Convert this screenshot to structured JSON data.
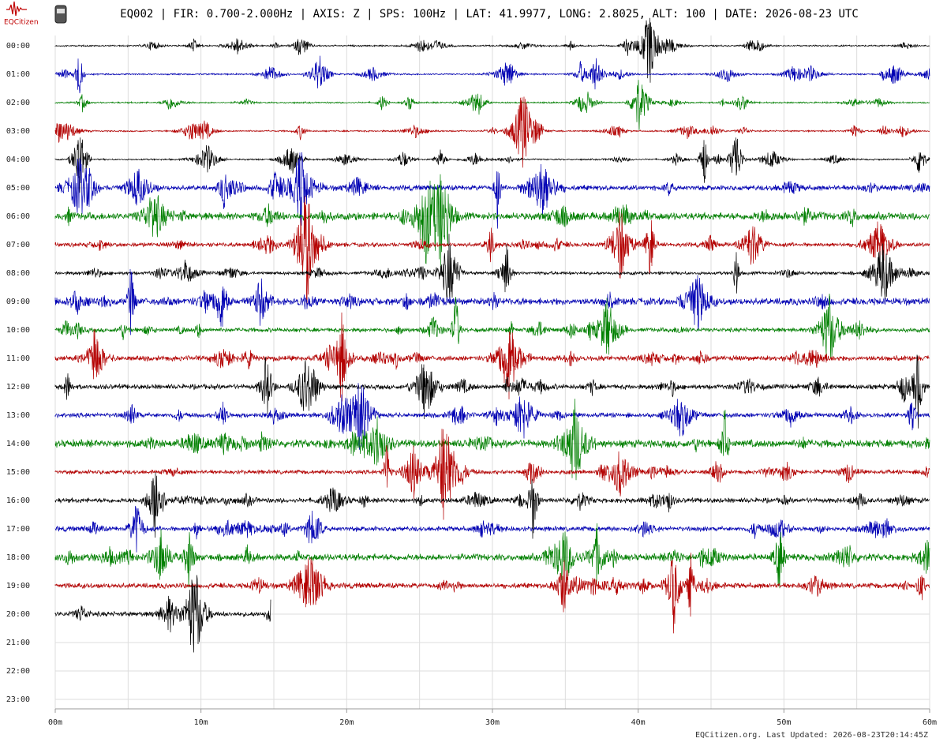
{
  "chart_data": {
    "type": "helicorder",
    "brand": "EQCitizen",
    "title": "EQ002 | FIR: 0.700-2.000Hz | AXIS: Z | SPS: 100Hz | LAT: 41.9977, LONG: 2.8025, ALT: 100 | DATE: 2026-08-23 UTC",
    "footer": "EQCitizen.org. Last Updated: 2026-08-23T20:14:45Z",
    "categories": [
      "00:00",
      "01:00",
      "02:00",
      "03:00",
      "04:00",
      "05:00",
      "06:00",
      "07:00",
      "08:00",
      "09:00",
      "10:00",
      "11:00",
      "12:00",
      "13:00",
      "14:00",
      "15:00",
      "16:00",
      "17:00",
      "18:00",
      "19:00",
      "20:00",
      "21:00",
      "22:00",
      "23:00"
    ],
    "colors": [
      "#000000",
      "#0000b4",
      "#008000",
      "#b40000"
    ],
    "last_trace_end": 14.8,
    "xlim": [
      0,
      60
    ],
    "xticks": [
      {
        "value": 0,
        "label": "00m"
      },
      {
        "value": 10,
        "label": "10m"
      },
      {
        "value": 20,
        "label": "20m"
      },
      {
        "value": 30,
        "label": "30m"
      },
      {
        "value": 40,
        "label": "40m"
      },
      {
        "value": 50,
        "label": "50m"
      },
      {
        "value": 60,
        "label": "60m"
      }
    ],
    "xgrid": [
      0,
      5,
      10,
      15,
      20,
      25,
      30,
      35,
      40,
      45,
      50,
      55,
      60
    ],
    "grid": true
  }
}
